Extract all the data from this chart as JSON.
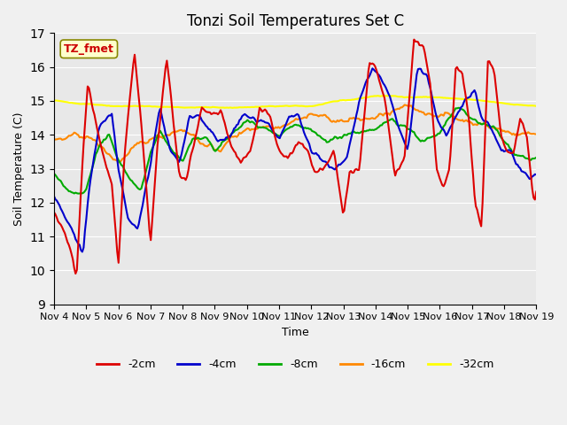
{
  "title": "Tonzi Soil Temperatures Set C",
  "xlabel": "Time",
  "ylabel": "Soil Temperature (C)",
  "ylim": [
    9.0,
    17.0
  ],
  "yticks": [
    9.0,
    10.0,
    11.0,
    12.0,
    13.0,
    14.0,
    15.0,
    16.0,
    17.0
  ],
  "xtick_labels": [
    "Nov 4",
    "Nov 5",
    "Nov 6",
    "Nov 7",
    "Nov 8",
    "Nov 9",
    "Nov 10",
    "Nov 11",
    "Nov 12",
    "Nov 13",
    "Nov 14",
    "Nov 15",
    "Nov 16",
    "Nov 17",
    "Nov 18",
    "Nov 19"
  ],
  "colors": {
    "-2cm": "#dd0000",
    "-4cm": "#0000cc",
    "-8cm": "#00aa00",
    "-16cm": "#ff8800",
    "-32cm": "#ffff00"
  },
  "legend_label": "TZ_fmet",
  "background_color": "#e8e8e8",
  "n_points": 360
}
